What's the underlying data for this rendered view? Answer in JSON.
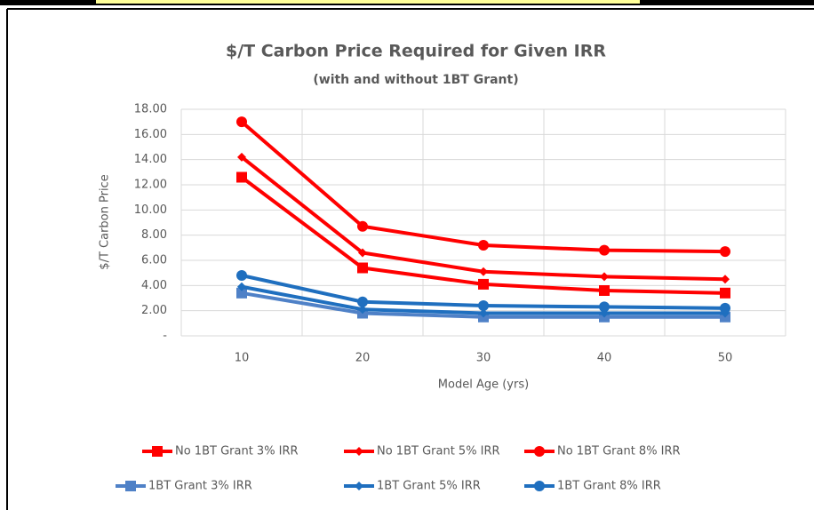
{
  "chart_data": {
    "type": "line",
    "title": "$/T Carbon Price Required for Given IRR",
    "subtitle": "(with and without 1BT Grant)",
    "x_label": "Model Age (yrs)",
    "y_label": "$/T Carbon Price",
    "categories": [
      "10",
      "20",
      "30",
      "40",
      "50"
    ],
    "ylim": [
      0,
      18
    ],
    "yticks": [
      {
        "value": 0,
        "label": "-"
      },
      {
        "value": 2,
        "label": "2.00"
      },
      {
        "value": 4,
        "label": "4.00"
      },
      {
        "value": 6,
        "label": "6.00"
      },
      {
        "value": 8,
        "label": "8.00"
      },
      {
        "value": 10,
        "label": "10.00"
      },
      {
        "value": 12,
        "label": "12.00"
      },
      {
        "value": 14,
        "label": "14.00"
      },
      {
        "value": 16,
        "label": "16.00"
      },
      {
        "value": 18,
        "label": "18.00"
      }
    ],
    "grid": true,
    "legend": "bottom",
    "series": [
      {
        "name": "No 1BT Grant 3% IRR",
        "color": "#ff0000",
        "marker": "square",
        "values": [
          12.6,
          5.4,
          4.1,
          3.6,
          3.4
        ]
      },
      {
        "name": "No 1BT Grant 5% IRR",
        "color": "#ff0000",
        "marker": "diamond",
        "values": [
          14.2,
          6.6,
          5.1,
          4.7,
          4.5
        ]
      },
      {
        "name": "No 1BT Grant 8% IRR",
        "color": "#ff0000",
        "marker": "circle",
        "values": [
          17.0,
          8.7,
          7.2,
          6.8,
          6.7
        ]
      },
      {
        "name": "1BT Grant 3% IRR",
        "color": "#4f81c7",
        "marker": "square",
        "values": [
          3.4,
          1.8,
          1.5,
          1.5,
          1.5
        ]
      },
      {
        "name": "1BT Grant 5% IRR",
        "color": "#1f6fbf",
        "marker": "diamond",
        "values": [
          3.9,
          2.1,
          1.8,
          1.8,
          1.8
        ]
      },
      {
        "name": "1BT Grant 8% IRR",
        "color": "#1f6fbf",
        "marker": "circle",
        "values": [
          4.8,
          2.7,
          2.4,
          2.3,
          2.2
        ]
      }
    ]
  }
}
